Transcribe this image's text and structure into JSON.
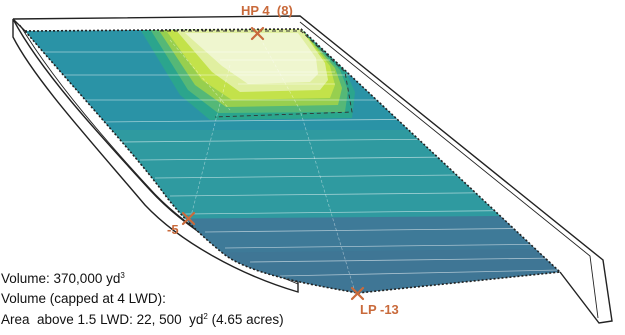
{
  "colors": {
    "marker": "#c96a3b",
    "outline": "#222222",
    "surface_low": "#3e7f96",
    "surface_mid": "#2e9b9b",
    "surface_high": "#b7dc4a",
    "surface_peak": "#eef6c8"
  },
  "labels": {
    "high_point": "HP 4  (8)",
    "left_point": "-5",
    "low_point": "LP -13"
  },
  "info": {
    "volume_text": "Volume: 370,000 yd",
    "volume_unit_sup": "3",
    "capped_text": "Volume (capped at 4 LWD):",
    "area_text": "Area  above 1.5 LWD: 22, 500  yd",
    "area_unit_sup": "2",
    "area_acres": " (4.65 acres)"
  },
  "markers": [
    "x-marker",
    "x-marker",
    "x-marker"
  ]
}
